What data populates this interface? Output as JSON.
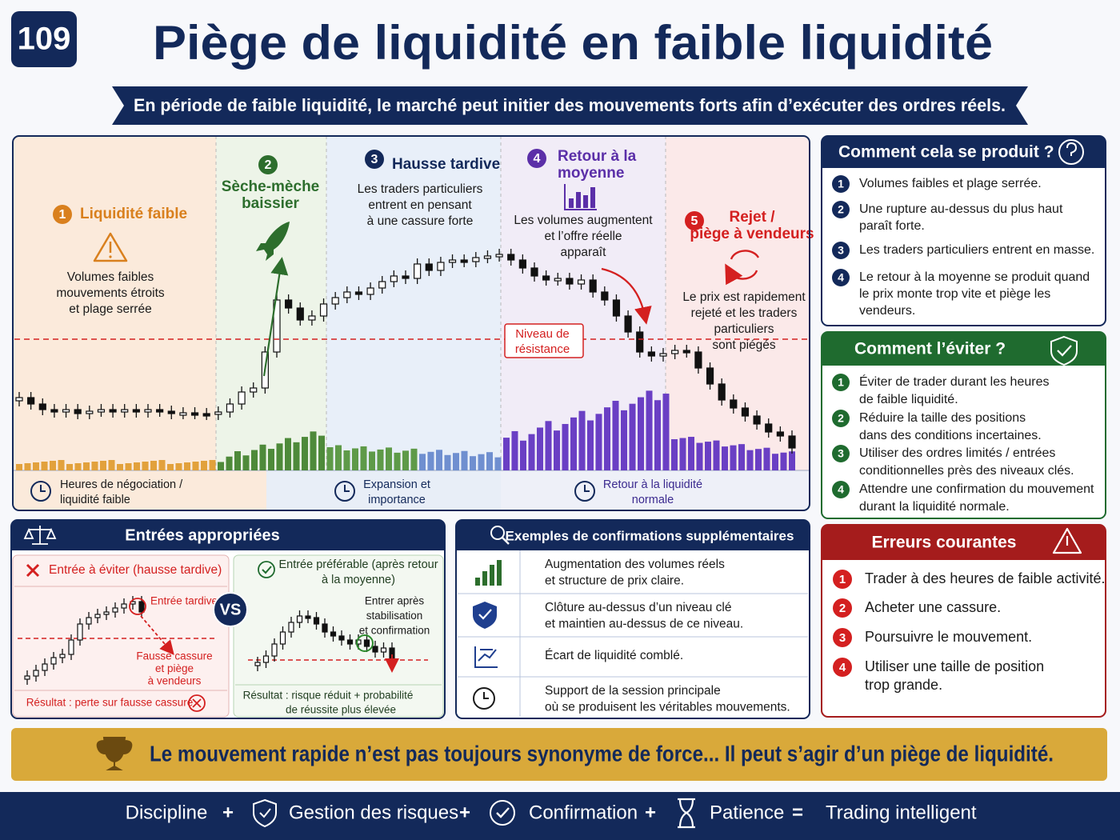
{
  "badge": "109",
  "title": "Piège de liquidité en faible liquidité",
  "subtitle": "En période de faible liquidité, le marché peut initier des mouvements forts afin d’exécuter des ordres réels.",
  "diagram": {
    "phases": [
      {
        "number": "1",
        "title": [
          "Liquidité faible"
        ],
        "text": [
          "Volumes faibles",
          "mouvements étroits",
          "et plage serrée"
        ]
      },
      {
        "number": "2",
        "title": [
          "Sèche-mèche",
          "baissier"
        ]
      },
      {
        "number": "3",
        "title": [
          "Hausse tardive"
        ],
        "text": [
          "Les traders particuliers",
          "entrent en pensant",
          "à une cassure forte"
        ]
      },
      {
        "number": "4",
        "title": [
          "Retour à la",
          "moyenne"
        ],
        "text": [
          "Les volumes augmentent",
          "et l’offre réelle",
          "apparaît"
        ]
      },
      {
        "number": "5",
        "title": [
          "Rejet /",
          "piège à vendeurs"
        ],
        "text": [
          "Le prix est rapidement",
          "rejeté et les traders",
          "particuliers",
          "sont piégés"
        ]
      }
    ],
    "resistance": [
      "Niveau de",
      "résistance"
    ],
    "sessions": [
      [
        "Heures de négociation /",
        "liquidité faible"
      ],
      [
        "Expansion et",
        "importance"
      ],
      [
        "Retour à la liquidité",
        "normale"
      ]
    ]
  },
  "how": {
    "title": "Comment cela se produit ?",
    "items": [
      {
        "number": "1",
        "lines": [
          "Volumes faibles et plage serrée."
        ]
      },
      {
        "number": "2",
        "lines": [
          "Une rupture au-dessus du plus haut",
          "paraît forte."
        ]
      },
      {
        "number": "3",
        "lines": [
          "Les traders particuliers entrent en masse."
        ]
      },
      {
        "number": "4",
        "lines": [
          "Le retour à la moyenne se produit quand",
          "le prix monte trop vite et piège les",
          "vendeurs."
        ]
      }
    ]
  },
  "avoid": {
    "title": "Comment l’éviter ?",
    "items": [
      {
        "number": "1",
        "lines": [
          "Éviter de trader durant les heures",
          "de faible liquidité."
        ]
      },
      {
        "number": "2",
        "lines": [
          "Réduire la taille des positions",
          "dans des conditions incertaines."
        ]
      },
      {
        "number": "3",
        "lines": [
          "Utiliser des ordres limités / entrées",
          "conditionnelles près des niveaux clés."
        ]
      },
      {
        "number": "4",
        "lines": [
          "Attendre une confirmation du mouvement",
          "durant la liquidité normale."
        ]
      }
    ]
  },
  "entries": {
    "title": "Entrées appropriées",
    "bad": {
      "title": "Entrée à éviter (hausse tardive)",
      "label": "Entrée tardive",
      "annotation": [
        "Fausse cassure",
        "et piège",
        "à vendeurs"
      ],
      "result": "Résultat : perte sur fausse cassure"
    },
    "vs": "VS",
    "good": {
      "title": [
        "Entrée préférable (après retour",
        "à la moyenne)"
      ],
      "annotation": [
        "Entrer après",
        "stabilisation",
        "et confirmation"
      ],
      "result": [
        "Résultat : risque réduit + probabilité",
        "de réussite plus élevée"
      ]
    }
  },
  "confirmations": {
    "title": "Exemples de confirmations supplémentaires",
    "items": [
      [
        "Augmentation des volumes réels",
        "et structure de prix claire."
      ],
      [
        "Clôture au-dessus d’un niveau clé",
        "et maintien au-dessus de ce niveau."
      ],
      [
        "Écart de liquidité comblé."
      ],
      [
        "Support de la session principale",
        "où se produisent les véritables mouvements."
      ]
    ]
  },
  "errors": {
    "title": "Erreurs courantes",
    "items": [
      {
        "number": "1",
        "lines": [
          "Trader à des heures de faible activité."
        ]
      },
      {
        "number": "2",
        "lines": [
          "Acheter une cassure."
        ]
      },
      {
        "number": "3",
        "lines": [
          "Poursuivre le mouvement."
        ]
      },
      {
        "number": "4",
        "lines": [
          "Utiliser une taille de position",
          "trop grande."
        ]
      }
    ]
  },
  "banner": "Le mouvement rapide n’est pas toujours synonyme de force... Il peut s’agir d’un piège de liquidité.",
  "footer": [
    "Discipline",
    "+",
    "Gestion des risques",
    "+",
    "Confirmation",
    "+",
    "Patience",
    "=",
    "Trading intelligent"
  ]
}
